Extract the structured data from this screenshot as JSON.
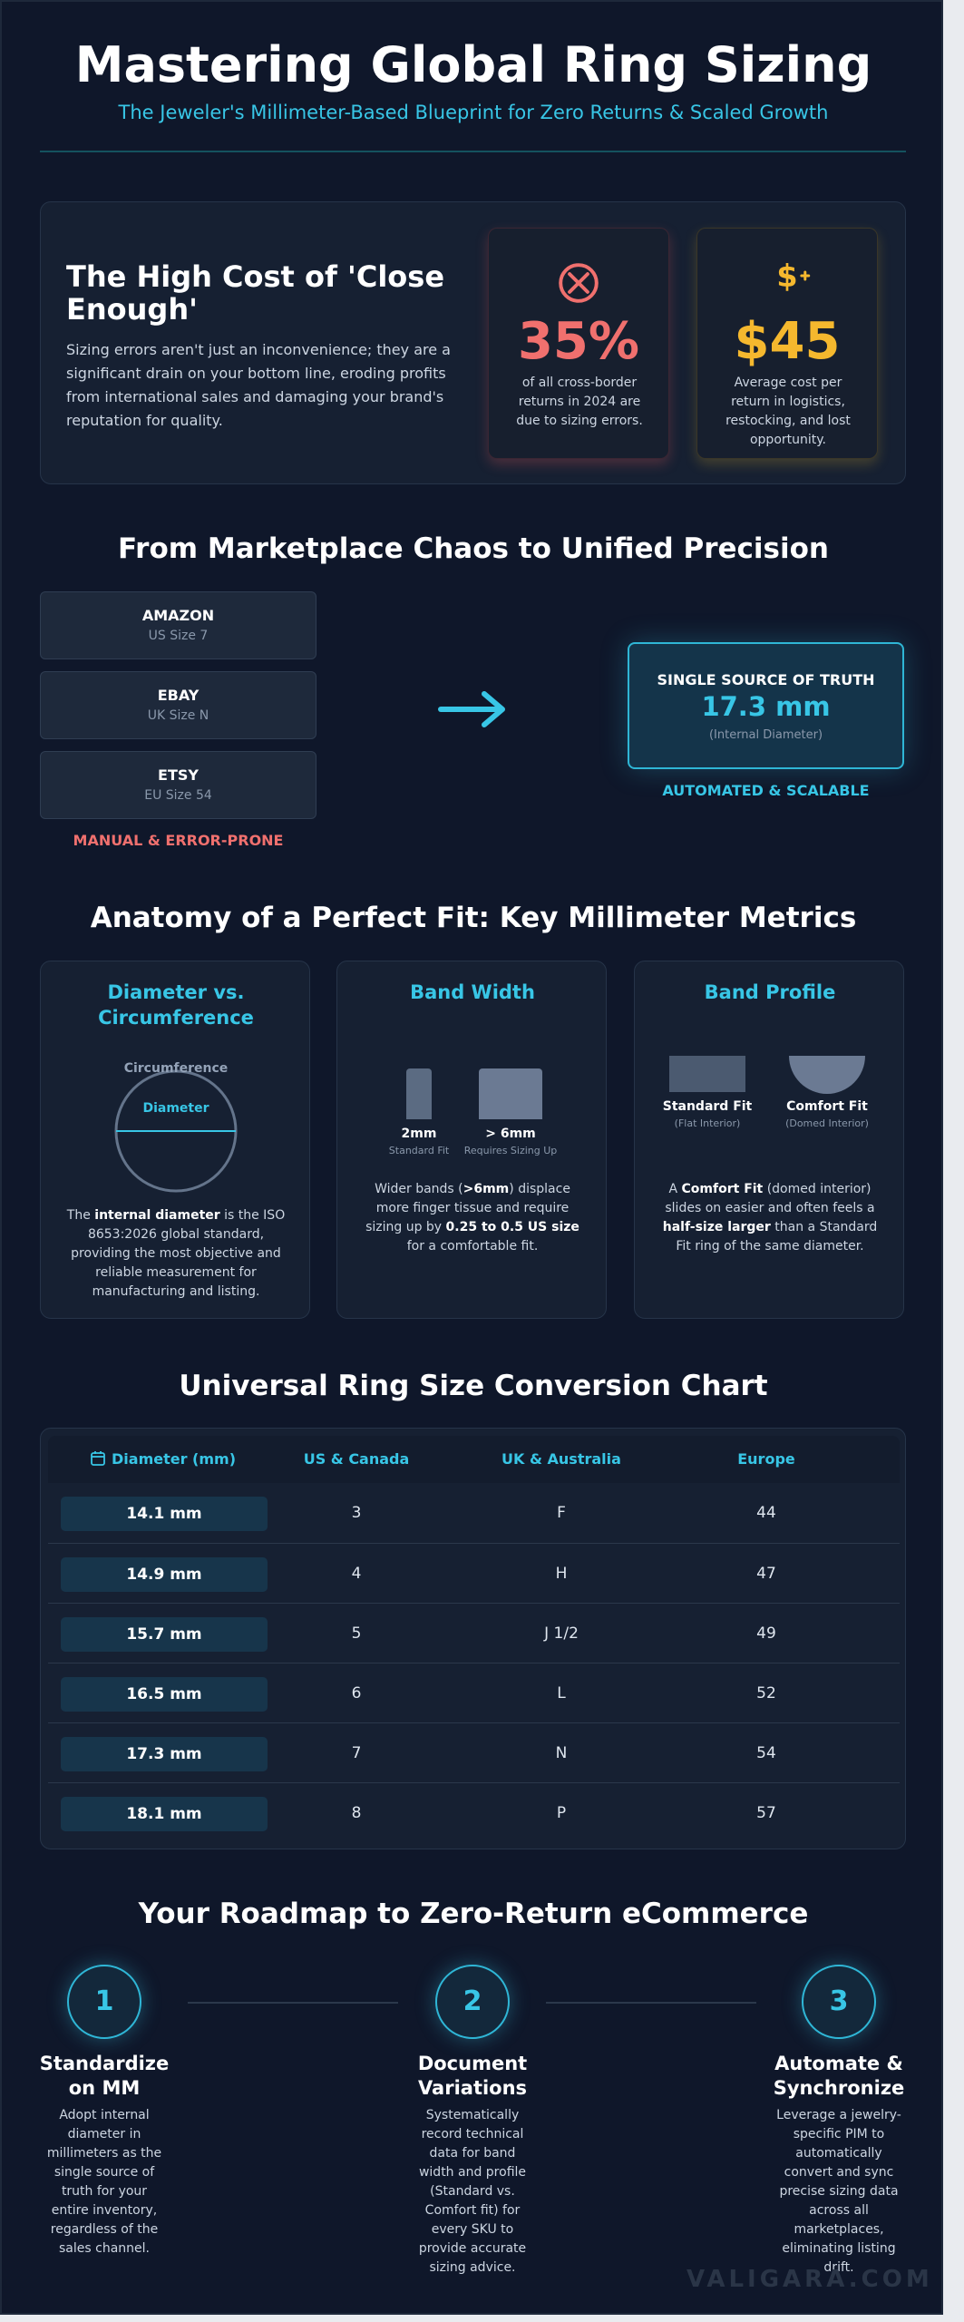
{
  "header": {
    "title": "Mastering Global Ring Sizing",
    "subtitle": "The Jeweler's Millimeter-Based Blueprint for Zero Returns & Scaled Growth"
  },
  "cost": {
    "title": "The High Cost of 'Close Enough'",
    "text": "Sizing errors aren't just an inconvenience; they are a significant drain on your bottom line, eroding profits from international sales and damaging your brand's reputation for quality.",
    "stats": [
      {
        "icon": "circle-x-icon",
        "value": "35%",
        "desc": "of all cross-border returns in 2024 are due to sizing errors.",
        "color": "#f0706e"
      },
      {
        "icon": "dollar-icon",
        "value": "$45",
        "desc": "Average cost per return in logistics, restocking, and lost opportunity.",
        "color": "#f5b82e"
      }
    ]
  },
  "unified": {
    "title": "From Marketplace Chaos to Unified Precision",
    "marketplaces": [
      {
        "name": "AMAZON",
        "size": "US Size 7"
      },
      {
        "name": "EBAY",
        "size": "UK Size N"
      },
      {
        "name": "ETSY",
        "size": "EU Size 54"
      }
    ],
    "manual_label": "MANUAL & ERROR-PRONE",
    "truth_label": "SINGLE SOURCE OF TRUTH",
    "truth_value": "17.3 mm",
    "truth_note": "(Internal Diameter)",
    "auto_label": "AUTOMATED & SCALABLE"
  },
  "anatomy": {
    "title": "Anatomy of a Perfect Fit: Key Millimeter Metrics",
    "cards": [
      {
        "title": "Diameter vs. Circumference",
        "circumference_label": "Circumference",
        "diameter_label": "Diameter",
        "desc_pre": "The ",
        "desc_bold": "internal diameter",
        "desc_post": " is the ISO 8653:2026 global standard, providing the most objective and reliable measurement for manufacturing and listing."
      },
      {
        "title": "Band Width",
        "narrow_label": "2mm",
        "narrow_sub": "Standard Fit",
        "wide_label": "> 6mm",
        "wide_sub": "Requires Sizing Up",
        "desc_pre": "Wider bands (",
        "desc_bold": ">6mm",
        "desc_mid": ") displace more finger tissue and require sizing up by ",
        "desc_bold2": "0.25 to 0.5 US size",
        "desc_post": " for a comfortable fit."
      },
      {
        "title": "Band Profile",
        "flat_label": "Standard Fit",
        "flat_sub": "(Flat Interior)",
        "dome_label": "Comfort Fit",
        "dome_sub": "(Domed Interior)",
        "desc_pre": "A ",
        "desc_bold": "Comfort Fit",
        "desc_mid": " (domed interior) slides on easier and often feels a ",
        "desc_bold2": "half-size larger",
        "desc_post": " than a Standard Fit ring of the same diameter."
      }
    ]
  },
  "chart": {
    "title": "Universal Ring Size Conversion Chart",
    "headers": [
      "Diameter (mm)",
      "US & Canada",
      "UK & Australia",
      "Europe"
    ],
    "rows": [
      [
        "14.1 mm",
        "3",
        "F",
        "44"
      ],
      [
        "14.9 mm",
        "4",
        "H",
        "47"
      ],
      [
        "15.7 mm",
        "5",
        "J 1/2",
        "49"
      ],
      [
        "16.5 mm",
        "6",
        "L",
        "52"
      ],
      [
        "17.3 mm",
        "7",
        "N",
        "54"
      ],
      [
        "18.1 mm",
        "8",
        "P",
        "57"
      ]
    ]
  },
  "roadmap": {
    "title": "Your Roadmap to Zero-Return eCommerce",
    "steps": [
      {
        "num": "1",
        "title_line1": "Standardize",
        "title_line2": "on MM",
        "desc": "Adopt internal diameter in millimeters as the single source of truth for your entire inventory, regardless of the sales channel."
      },
      {
        "num": "2",
        "title_line1": "Document",
        "title_line2": "Variations",
        "desc": "Systematically record technical data for band width and profile (Standard vs. Comfort fit) for every SKU to provide accurate sizing advice."
      },
      {
        "num": "3",
        "title_line1": "Automate &",
        "title_line2": "Synchronize",
        "desc": "Leverage a jewelry-specific PIM to automatically convert and sync precise sizing data across all marketplaces, eliminating listing drift."
      }
    ]
  },
  "watermark": "VALIGARA.COM"
}
